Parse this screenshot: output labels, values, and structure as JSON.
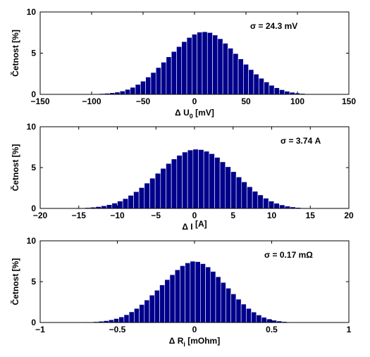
{
  "colors": {
    "bar": "#00008b",
    "bar_edge": "#ffffff",
    "axes": "#000000",
    "background": "#ffffff"
  },
  "chart_data": [
    {
      "type": "bar",
      "xlabel": "Δ U",
      "xlabel_sub": "0",
      "xlabel_unit": " [mV]",
      "ylabel": "Četnost [%]",
      "annotation": "σ = 24.3 mV",
      "xlim": [
        -150,
        150
      ],
      "ylim": [
        0,
        10
      ],
      "xticks": [
        -150,
        -100,
        -50,
        0,
        50,
        100,
        150
      ],
      "yticks": [
        0,
        5,
        10
      ],
      "bin_start": -117.5,
      "bin_width": 5,
      "values": [
        0.02,
        0.02,
        0.03,
        0.04,
        0.06,
        0.09,
        0.13,
        0.19,
        0.27,
        0.4,
        0.6,
        0.85,
        1.2,
        1.6,
        2.1,
        2.65,
        3.25,
        3.9,
        4.55,
        5.2,
        5.8,
        6.4,
        6.9,
        7.3,
        7.55,
        7.6,
        7.5,
        7.2,
        6.75,
        6.2,
        5.6,
        4.95,
        4.3,
        3.65,
        3.0,
        2.45,
        1.95,
        1.5,
        1.1,
        0.8,
        0.56,
        0.38,
        0.25,
        0.16,
        0.1,
        0.06,
        0.04,
        0.02
      ]
    },
    {
      "type": "bar",
      "xlabel": "Δ I",
      "xlabel_sub": "",
      "xlabel_unit": " [A]",
      "ylabel": "Četnost [%]",
      "annotation": "σ = 3.74 A",
      "xlim": [
        -20,
        20
      ],
      "ylim": [
        0,
        10
      ],
      "xticks": [
        -20,
        -15,
        -10,
        -5,
        0,
        5,
        10,
        15,
        20
      ],
      "yticks": [
        0,
        5,
        10
      ],
      "bin_start": -17,
      "bin_width": 0.7,
      "values": [
        0.02,
        0.03,
        0.05,
        0.07,
        0.1,
        0.15,
        0.22,
        0.32,
        0.46,
        0.65,
        0.9,
        1.2,
        1.6,
        2.05,
        2.55,
        3.1,
        3.7,
        4.3,
        4.9,
        5.5,
        6.05,
        6.5,
        6.9,
        7.15,
        7.25,
        7.2,
        7.0,
        6.7,
        6.25,
        5.7,
        5.1,
        4.5,
        3.85,
        3.25,
        2.65,
        2.1,
        1.65,
        1.25,
        0.9,
        0.63,
        0.43,
        0.28,
        0.18,
        0.11,
        0.07,
        0.04,
        0.02,
        0.01
      ]
    },
    {
      "type": "bar",
      "xlabel": "Δ R",
      "xlabel_sub": "i",
      "xlabel_unit": " [mOhm]",
      "ylabel": "Četnost [%]",
      "annotation": "σ = 0.17 mΩ",
      "xlim": [
        -1,
        1
      ],
      "ylim": [
        0,
        10
      ],
      "xticks": [
        -1,
        -0.5,
        0,
        0.5,
        1
      ],
      "yticks": [
        0,
        5,
        10
      ],
      "bin_start": -0.82,
      "bin_width": 0.033,
      "values": [
        0.02,
        0.02,
        0.03,
        0.05,
        0.07,
        0.1,
        0.15,
        0.22,
        0.33,
        0.48,
        0.68,
        0.95,
        1.3,
        1.72,
        2.2,
        2.75,
        3.35,
        3.95,
        4.6,
        5.25,
        5.85,
        6.45,
        6.95,
        7.3,
        7.5,
        7.45,
        7.2,
        6.8,
        6.25,
        5.6,
        4.9,
        4.2,
        3.5,
        2.85,
        2.25,
        1.72,
        1.28,
        0.92,
        0.64,
        0.43,
        0.28,
        0.18,
        0.11,
        0.07,
        0.04,
        0.03,
        0.02,
        0.01
      ]
    }
  ]
}
